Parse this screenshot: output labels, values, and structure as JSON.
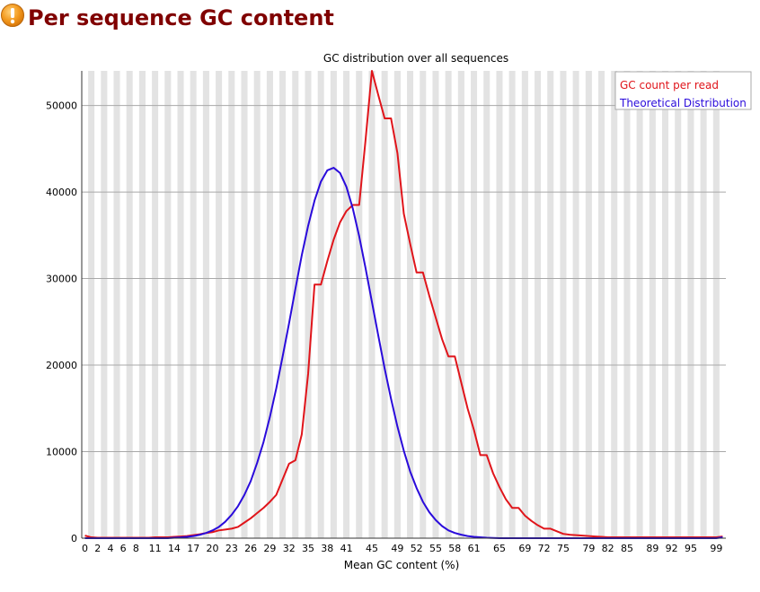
{
  "page": {
    "title": "Per sequence GC content",
    "status_icon": "warning-icon",
    "status_color": "#f0901a"
  },
  "chart_data": {
    "type": "line",
    "title": "GC distribution over all sequences",
    "xlabel": "Mean GC content (%)",
    "ylabel": "",
    "x": [
      0,
      1,
      2,
      3,
      4,
      5,
      6,
      7,
      8,
      9,
      10,
      11,
      12,
      13,
      14,
      15,
      16,
      17,
      18,
      19,
      20,
      21,
      22,
      23,
      24,
      25,
      26,
      27,
      28,
      29,
      30,
      31,
      32,
      33,
      34,
      35,
      36,
      37,
      38,
      39,
      40,
      41,
      42,
      43,
      44,
      45,
      46,
      47,
      48,
      49,
      50,
      51,
      52,
      53,
      54,
      55,
      56,
      57,
      58,
      59,
      60,
      61,
      62,
      63,
      64,
      65,
      66,
      67,
      68,
      69,
      70,
      71,
      72,
      73,
      74,
      75,
      76,
      77,
      78,
      79,
      80,
      81,
      82,
      83,
      84,
      85,
      86,
      87,
      88,
      89,
      90,
      91,
      92,
      93,
      94,
      95,
      96,
      97,
      98,
      99,
      100
    ],
    "xlim": [
      0,
      100
    ],
    "ylim": [
      0,
      54000
    ],
    "x_tick_labels": [
      "0",
      "2",
      "4",
      "6",
      "8",
      "11",
      "14",
      "17",
      "20",
      "23",
      "26",
      "29",
      "32",
      "35",
      "38",
      "41",
      "45",
      "49",
      "52",
      "55",
      "58",
      "61",
      "65",
      "69",
      "72",
      "75",
      "79",
      "82",
      "85",
      "89",
      "92",
      "95",
      "99"
    ],
    "y_ticks": [
      0,
      10000,
      20000,
      30000,
      40000,
      50000
    ],
    "y_tick_labels": [
      "0",
      "10000",
      "20000",
      "30000",
      "40000",
      "50000"
    ],
    "grid": "horizontal lines with alternating vertical bands",
    "legend_position": "top-right",
    "series": [
      {
        "name": "GC count per read",
        "color": "#e0151b",
        "values": [
          300,
          100,
          50,
          50,
          50,
          50,
          50,
          50,
          50,
          50,
          50,
          100,
          100,
          100,
          150,
          200,
          250,
          350,
          450,
          600,
          700,
          900,
          1000,
          1100,
          1300,
          1800,
          2300,
          2900,
          3500,
          4200,
          5000,
          6800,
          8600,
          9000,
          12000,
          19000,
          29300,
          29300,
          32000,
          34500,
          36500,
          37800,
          38500,
          38500,
          46000,
          54000,
          51200,
          48500,
          48500,
          44500,
          37500,
          34000,
          30700,
          30700,
          28000,
          25500,
          23000,
          21000,
          21000,
          18000,
          15000,
          12500,
          9600,
          9600,
          7500,
          5900,
          4500,
          3500,
          3500,
          2600,
          2000,
          1500,
          1100,
          1100,
          800,
          500,
          400,
          350,
          300,
          250,
          200,
          150,
          100,
          100,
          100,
          100,
          100,
          100,
          100,
          100,
          100,
          100,
          100,
          100,
          100,
          100,
          100,
          100,
          100,
          100,
          200
        ]
      },
      {
        "name": "Theoretical Distribution",
        "color": "#2a0bdb",
        "values": [
          0,
          0,
          0,
          0,
          0,
          0,
          0,
          0,
          0,
          0,
          0,
          0,
          0,
          0,
          50,
          90,
          150,
          250,
          390,
          600,
          900,
          1300,
          1900,
          2700,
          3700,
          5000,
          6600,
          8700,
          11100,
          14000,
          17300,
          21000,
          24800,
          28800,
          32700,
          36100,
          39000,
          41200,
          42500,
          42800,
          42200,
          40600,
          38100,
          34900,
          31200,
          27300,
          23400,
          19600,
          16100,
          12900,
          10100,
          7700,
          5800,
          4200,
          3000,
          2100,
          1400,
          900,
          600,
          400,
          250,
          150,
          100,
          50,
          30,
          0,
          0,
          0,
          0,
          0,
          0,
          0,
          0,
          0,
          0,
          0,
          0,
          0,
          0,
          0,
          0,
          0,
          0,
          0,
          0,
          0,
          0,
          0,
          0,
          0,
          0,
          0,
          0,
          0,
          0,
          0,
          0,
          0,
          0,
          0,
          100
        ]
      }
    ]
  }
}
